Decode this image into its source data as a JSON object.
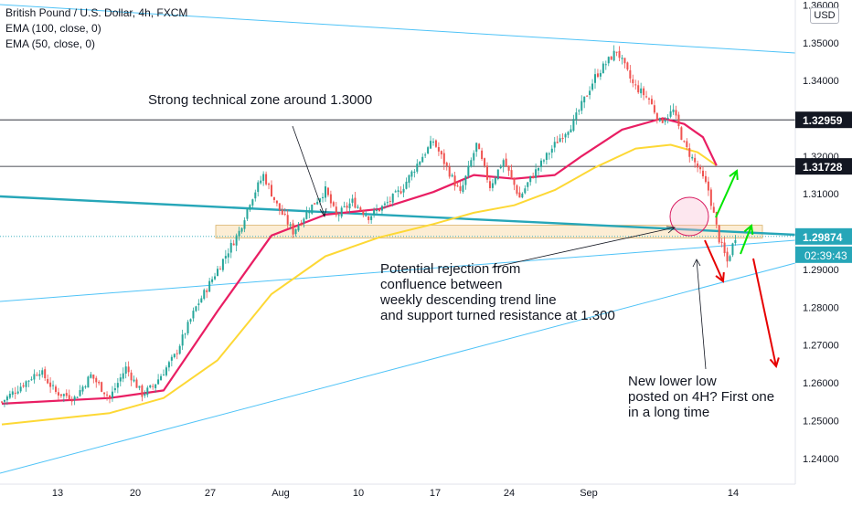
{
  "header": {
    "symbol_title": "British Pound / U.S. Dollar, 4h, FXCM",
    "indicator_1": "EMA (100, close, 0)",
    "indicator_2": "EMA (50, close, 0)",
    "currency": "USD"
  },
  "annotations": {
    "zone_note": "Strong technical zone around 1.3000",
    "rejection_note_lines": [
      "Potential rejection from",
      "confluence between",
      "weekly descending trend line",
      "and support turned resistance at 1.300"
    ],
    "lower_low_note_lines": [
      "New lower low",
      "posted on 4H? First one",
      "in a long time"
    ]
  },
  "price_badges": [
    {
      "label": "1.32959",
      "value": 1.32959,
      "style": "dark"
    },
    {
      "label": "1.31728",
      "value": 1.31728,
      "style": "dark"
    },
    {
      "label": "1.29874",
      "value": 1.29874,
      "style": "teal"
    }
  ],
  "countdown_badge": {
    "label": "02:39:43"
  },
  "colors": {
    "up_candle": "#26a69a",
    "down_candle": "#ef5350",
    "ema_50": "#e91e63",
    "ema_100": "#fdd835",
    "trend_line_light": "#4fc3f7",
    "trend_line_main": "#26a6b8",
    "zone_fill": "#fbe9c9",
    "arrow_up": "#00e600",
    "arrow_down": "#e60000",
    "badge_dark": "#131722",
    "badge_teal": "#26a6b8"
  },
  "chart_data": {
    "type": "candlestick",
    "ylim": [
      1.2332,
      1.3613
    ],
    "y_ticks": [
      "1.24000",
      "1.25000",
      "1.26000",
      "1.27000",
      "1.28000",
      "1.29000",
      "1.30000",
      "1.31000",
      "1.32000",
      "1.33000",
      "1.34000",
      "1.35000",
      "1.36000"
    ],
    "x_ticks": [
      "13",
      "20",
      "27",
      "Aug",
      "10",
      "17",
      "24",
      "Sep",
      "14"
    ],
    "price_line_levels": [
      1.32959,
      1.31728
    ],
    "resistance_zone": {
      "y_low": 1.2983,
      "y_high": 1.3017
    },
    "series": [
      {
        "name": "price",
        "waypoints": [
          [
            0,
            1.255
          ],
          [
            14,
            1.2633
          ],
          [
            20,
            1.2575
          ],
          [
            27,
            1.256
          ],
          [
            33,
            1.262
          ],
          [
            40,
            1.256
          ],
          [
            46,
            1.264
          ],
          [
            52,
            1.257
          ],
          [
            56,
            1.259
          ],
          [
            64,
            1.267
          ],
          [
            72,
            1.28
          ],
          [
            80,
            1.29
          ],
          [
            88,
            1.3
          ],
          [
            92,
            1.308
          ],
          [
            97,
            1.315
          ],
          [
            102,
            1.307
          ],
          [
            108,
            1.3
          ],
          [
            114,
            1.306
          ],
          [
            120,
            1.311
          ],
          [
            124,
            1.304
          ],
          [
            130,
            1.308
          ],
          [
            136,
            1.304
          ],
          [
            142,
            1.307
          ],
          [
            148,
            1.311
          ],
          [
            155,
            1.319
          ],
          [
            160,
            1.324
          ],
          [
            165,
            1.317
          ],
          [
            170,
            1.31
          ],
          [
            176,
            1.323
          ],
          [
            181,
            1.312
          ],
          [
            186,
            1.319
          ],
          [
            192,
            1.309
          ],
          [
            196,
            1.314
          ],
          [
            200,
            1.318
          ],
          [
            206,
            1.324
          ],
          [
            212,
            1.329
          ],
          [
            220,
            1.341
          ],
          [
            228,
            1.348
          ],
          [
            234,
            1.339
          ],
          [
            240,
            1.335
          ],
          [
            244,
            1.329
          ],
          [
            249,
            1.332
          ],
          [
            253,
            1.323
          ],
          [
            258,
            1.317
          ],
          [
            262,
            1.311
          ],
          [
            266,
            1.298
          ],
          [
            269,
            1.292
          ],
          [
            272,
            1.2987
          ]
        ]
      },
      {
        "name": "EMA (50, close, 0)",
        "points": [
          [
            0,
            1.2545
          ],
          [
            40,
            1.256
          ],
          [
            60,
            1.258
          ],
          [
            80,
            1.279
          ],
          [
            100,
            1.299
          ],
          [
            120,
            1.3045
          ],
          [
            140,
            1.306
          ],
          [
            160,
            1.3105
          ],
          [
            175,
            1.315
          ],
          [
            190,
            1.314
          ],
          [
            205,
            1.315
          ],
          [
            215,
            1.32
          ],
          [
            230,
            1.327
          ],
          [
            245,
            1.33
          ],
          [
            253,
            1.3285
          ],
          [
            260,
            1.325
          ],
          [
            265,
            1.3175
          ]
        ]
      },
      {
        "name": "EMA (100, close, 0)",
        "points": [
          [
            0,
            1.249
          ],
          [
            40,
            1.252
          ],
          [
            60,
            1.256
          ],
          [
            80,
            1.266
          ],
          [
            100,
            1.2835
          ],
          [
            120,
            1.2935
          ],
          [
            140,
            1.2985
          ],
          [
            160,
            1.302
          ],
          [
            175,
            1.305
          ],
          [
            190,
            1.307
          ],
          [
            205,
            1.311
          ],
          [
            220,
            1.317
          ],
          [
            235,
            1.322
          ],
          [
            248,
            1.323
          ],
          [
            258,
            1.321
          ],
          [
            265,
            1.3175
          ]
        ]
      }
    ]
  }
}
